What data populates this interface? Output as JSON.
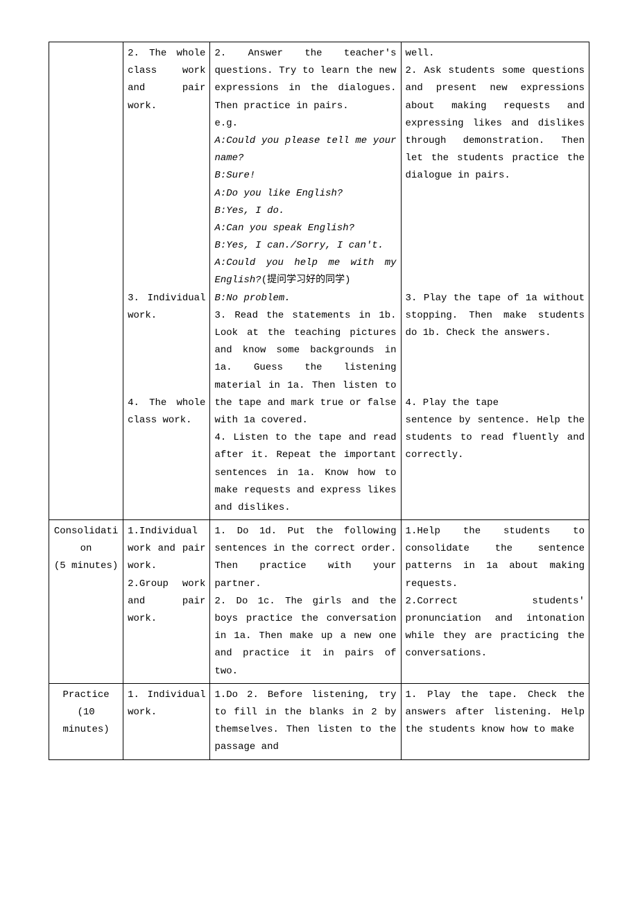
{
  "row1": {
    "col2_p1": "2. The whole class work and pair work.",
    "col2_p2": "3. Individual work.",
    "col2_p3": "4. The whole class work.",
    "col3_p1a": "2. Answer the teacher's questions. Try to learn the new expressions in the dialogues. Then practice in pairs.",
    "col3_p1b": "e.g.",
    "col3_i1": "A:Could you please tell me your name?",
    "col3_i2": "B:Sure!",
    "col3_i3": "A:Do you like English?",
    "col3_i4": "B:Yes, I do.",
    "col3_i5": "A:Can you speak English?",
    "col3_i6": "B:Yes, I can./Sorry, I can't.",
    "col3_i7": "A:Could you help me with my English?",
    "col3_i7_tail": "(提问学习好的同学)",
    "col3_i8": "B:No problem.",
    "col3_p3": "3. Read the statements in 1b. Look at the teaching pictures and know some backgrounds in 1a. Guess the listening material in 1a. Then listen to the tape and mark true or false with 1a covered.",
    "col3_p4": "4. Listen to the tape and read after it. Repeat the important sentences in 1a. Know how to make requests and express likes and dislikes.",
    "col4_p1": "well.",
    "col4_p2": "2. Ask students some questions and present new expressions about making requests and expressing likes and dislikes through demonstration. Then let the students practice the dialogue in pairs.",
    "col4_p3": "3. Play the tape of 1a without stopping. Then make students do 1b. Check the answers.",
    "col4_p4a": "4. Play the tape",
    "col4_p4b": "sentence by sentence. Help the students to read fluently and correctly."
  },
  "row2": {
    "col1_l1": "Consolidati",
    "col1_l2": "on",
    "col1_l3": "(5 minutes)",
    "col2_p1": "1.Individual work and pair work.",
    "col2_p2": "2.Group work and pair work.",
    "col3_p1": "1. Do 1d. Put the following sentences in the correct order. Then practice with your partner.",
    "col3_p2": "2. Do 1c. The girls and the boys practice the conversation in 1a. Then make up a new one and practice it in pairs of two.",
    "col4_p1": "1.Help the students to consolidate the sentence patterns in 1a about making requests.",
    "col4_p2": "2.Correct students' pronunciation and intonation while they are practicing the conversations."
  },
  "row3": {
    "col1_l1": "Practice",
    "col1_l2": "(10",
    "col1_l3": "minutes)",
    "col2_p1": "1. Individual work.",
    "col3_p1": "1.Do 2. Before listening, try to fill in the blanks in 2 by themselves. Then listen to the passage and",
    "col4_p1": "1. Play the tape. Check the answers after listening. Help the students know how to make"
  }
}
